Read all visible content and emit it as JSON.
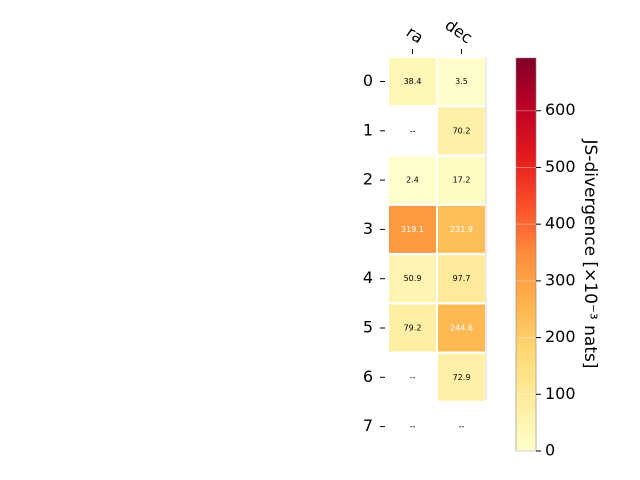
{
  "chart_data": {
    "type": "heatmap",
    "x_categories": [
      "ra",
      "dec"
    ],
    "y_categories": [
      "0",
      "1",
      "2",
      "3",
      "4",
      "5",
      "6",
      "7"
    ],
    "values": [
      [
        38.4,
        3.5
      ],
      [
        null,
        70.2
      ],
      [
        2.4,
        17.2
      ],
      [
        319.1,
        231.9
      ],
      [
        50.9,
        97.7
      ],
      [
        79.2,
        244.6
      ],
      [
        null,
        72.9
      ],
      [
        null,
        null
      ]
    ],
    "cell_labels": [
      [
        "38.4",
        "3.5"
      ],
      [
        "--",
        "70.2"
      ],
      [
        "2.4",
        "17.2"
      ],
      [
        "319.1",
        "231.9"
      ],
      [
        "50.9",
        "97.7"
      ],
      [
        "79.2",
        "244.6"
      ],
      [
        "--",
        "72.9"
      ],
      [
        "--",
        "--"
      ]
    ],
    "colorbar": {
      "label": "JS-divergence [×10⁻³ nats]",
      "min": 0,
      "max": 693,
      "ticks": [
        0,
        100,
        200,
        300,
        400,
        500,
        600
      ],
      "colormap": "YlOrRd"
    }
  }
}
